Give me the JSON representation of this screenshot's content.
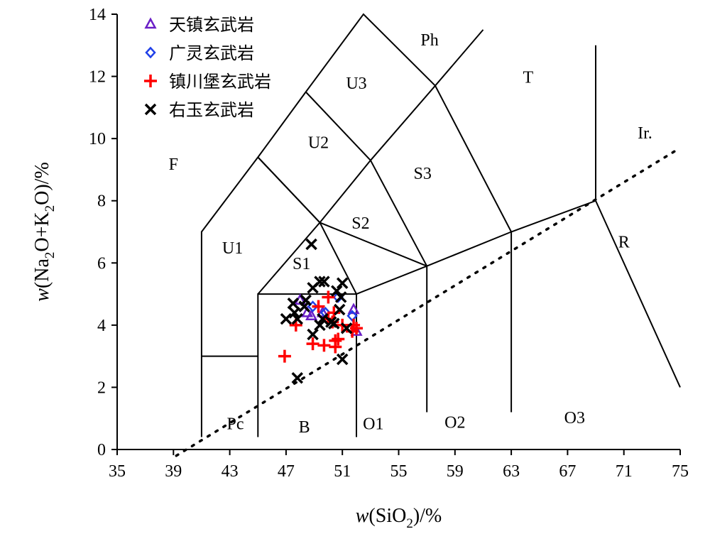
{
  "chart_data": {
    "type": "scatter",
    "title": "",
    "xlabel": "w(SiO2)/%",
    "ylabel": "w(Na2O+K2O)/%",
    "xlim": [
      35,
      75
    ],
    "ylim": [
      0,
      14
    ],
    "x_ticks": [
      35,
      39,
      43,
      47,
      51,
      55,
      59,
      63,
      67,
      71,
      75
    ],
    "y_ticks": [
      0,
      2,
      4,
      6,
      8,
      10,
      12,
      14
    ],
    "x_tick_labels": [
      "35",
      "39",
      "43",
      "47",
      "51",
      "55",
      "59",
      "63",
      "67",
      "71",
      "75"
    ],
    "y_tick_labels": [
      "0",
      "2",
      "4",
      "6",
      "8",
      "10",
      "12",
      "14"
    ],
    "x_title_parts": {
      "italic": "w",
      "pre": "(SiO",
      "sub": "2",
      "post": ")/%"
    },
    "y_title_parts": {
      "italic": "w",
      "pre": "(Na",
      "sub": "2",
      "mid": "O+K",
      "sub2": "2",
      "post": "O)/%"
    },
    "legend_position": "top-left",
    "grid": false,
    "series": [
      {
        "name": "天镇玄武岩",
        "marker": "triangle",
        "color": "#6a1fc6",
        "points": [
          [
            48.0,
            4.8
          ],
          [
            48.5,
            4.4
          ],
          [
            48.8,
            4.3
          ],
          [
            51.8,
            4.5
          ],
          [
            52.0,
            3.8
          ],
          [
            49.6,
            4.4
          ]
        ]
      },
      {
        "name": "广灵玄武岩",
        "marker": "diamond",
        "color": "#1f3fe8",
        "points": [
          [
            50.7,
            4.9
          ],
          [
            51.7,
            4.3
          ],
          [
            49.8,
            4.4
          ],
          [
            48.9,
            4.6
          ]
        ]
      },
      {
        "name": "镇川堡玄武岩",
        "marker": "plus",
        "color": "#ff0000",
        "points": [
          [
            46.9,
            3.0
          ],
          [
            47.7,
            4.0
          ],
          [
            48.9,
            3.4
          ],
          [
            49.7,
            3.35
          ],
          [
            50.5,
            3.3
          ],
          [
            50.7,
            3.55
          ],
          [
            50.0,
            4.2
          ],
          [
            50.4,
            4.4
          ],
          [
            51.0,
            4.0
          ],
          [
            51.8,
            4.0
          ],
          [
            52.0,
            3.9
          ],
          [
            51.7,
            3.8
          ],
          [
            50.0,
            4.9
          ],
          [
            49.3,
            4.6
          ],
          [
            50.5,
            3.5
          ],
          [
            50.3,
            4.1
          ]
        ]
      },
      {
        "name": "右玉玄武岩",
        "marker": "cross",
        "color": "#000000",
        "points": [
          [
            48.8,
            6.6
          ],
          [
            49.4,
            5.4
          ],
          [
            49.7,
            5.4
          ],
          [
            48.9,
            5.2
          ],
          [
            47.5,
            4.7
          ],
          [
            48.3,
            4.6
          ],
          [
            47.6,
            4.4
          ],
          [
            47.8,
            4.2
          ],
          [
            47.0,
            4.2
          ],
          [
            48.4,
            4.8
          ],
          [
            48.9,
            3.7
          ],
          [
            49.4,
            4.0
          ],
          [
            50.2,
            4.1
          ],
          [
            50.4,
            4.05
          ],
          [
            50.6,
            5.1
          ],
          [
            51.0,
            5.35
          ],
          [
            50.9,
            4.9
          ],
          [
            51.3,
            3.9
          ],
          [
            51.0,
            2.9
          ],
          [
            47.8,
            2.3
          ],
          [
            49.6,
            4.2
          ],
          [
            50.8,
            4.5
          ]
        ]
      }
    ],
    "field_labels": [
      {
        "text": "F",
        "x": 39.0,
        "y": 9.0
      },
      {
        "text": "Ph",
        "x": 57.2,
        "y": 13.0
      },
      {
        "text": "T",
        "x": 64.2,
        "y": 11.8
      },
      {
        "text": "Ir.",
        "x": 72.5,
        "y": 10.0
      },
      {
        "text": "U3",
        "x": 52.0,
        "y": 11.6
      },
      {
        "text": "U2",
        "x": 49.3,
        "y": 9.7
      },
      {
        "text": "S3",
        "x": 56.7,
        "y": 8.7
      },
      {
        "text": "U1",
        "x": 43.2,
        "y": 6.3
      },
      {
        "text": "S2",
        "x": 52.3,
        "y": 7.1
      },
      {
        "text": "R",
        "x": 71.0,
        "y": 6.5
      },
      {
        "text": "S1",
        "x": 48.1,
        "y": 5.8
      },
      {
        "text": "Pc",
        "x": 43.4,
        "y": 0.65
      },
      {
        "text": "B",
        "x": 48.3,
        "y": 0.55
      },
      {
        "text": "O1",
        "x": 53.2,
        "y": 0.65
      },
      {
        "text": "O2",
        "x": 59.0,
        "y": 0.7
      },
      {
        "text": "O3",
        "x": 67.5,
        "y": 0.85
      }
    ],
    "boundaries": [
      [
        [
          41,
          0.4
        ],
        [
          41,
          7
        ],
        [
          45,
          9.4
        ],
        [
          48.4,
          11.5
        ],
        [
          52.5,
          14
        ],
        [
          57.6,
          11.7
        ],
        [
          61,
          13.5
        ]
      ],
      [
        [
          41,
          3
        ],
        [
          45,
          3
        ]
      ],
      [
        [
          45,
          0.4
        ],
        [
          45,
          5
        ],
        [
          52,
          5
        ],
        [
          57,
          5.9
        ],
        [
          63,
          7
        ],
        [
          69,
          8
        ],
        [
          75,
          2
        ]
      ],
      [
        [
          45,
          5
        ],
        [
          49.4,
          7.3
        ],
        [
          52,
          5
        ]
      ],
      [
        [
          52,
          0.4
        ],
        [
          52,
          5
        ]
      ],
      [
        [
          57,
          1.2
        ],
        [
          57,
          5.9
        ]
      ],
      [
        [
          63,
          1.2
        ],
        [
          63,
          7
        ]
      ],
      [
        [
          69,
          8
        ],
        [
          69,
          13
        ]
      ],
      [
        [
          45,
          9.4
        ],
        [
          49.4,
          7.3
        ],
        [
          53,
          9.3
        ],
        [
          57.6,
          11.7
        ]
      ],
      [
        [
          48.4,
          11.5
        ],
        [
          53,
          9.3
        ]
      ],
      [
        [
          53,
          9.3
        ],
        [
          57,
          5.9
        ]
      ],
      [
        [
          57.6,
          11.7
        ],
        [
          63,
          7
        ]
      ],
      [
        [
          49.4,
          7.3
        ],
        [
          57,
          5.9
        ]
      ],
      [
        [
          45,
          9.4
        ],
        [
          49.4,
          7.3
        ]
      ]
    ],
    "alkaline_line": [
      [
        39.2,
        -0.2
      ],
      [
        75,
        9.7
      ]
    ]
  }
}
